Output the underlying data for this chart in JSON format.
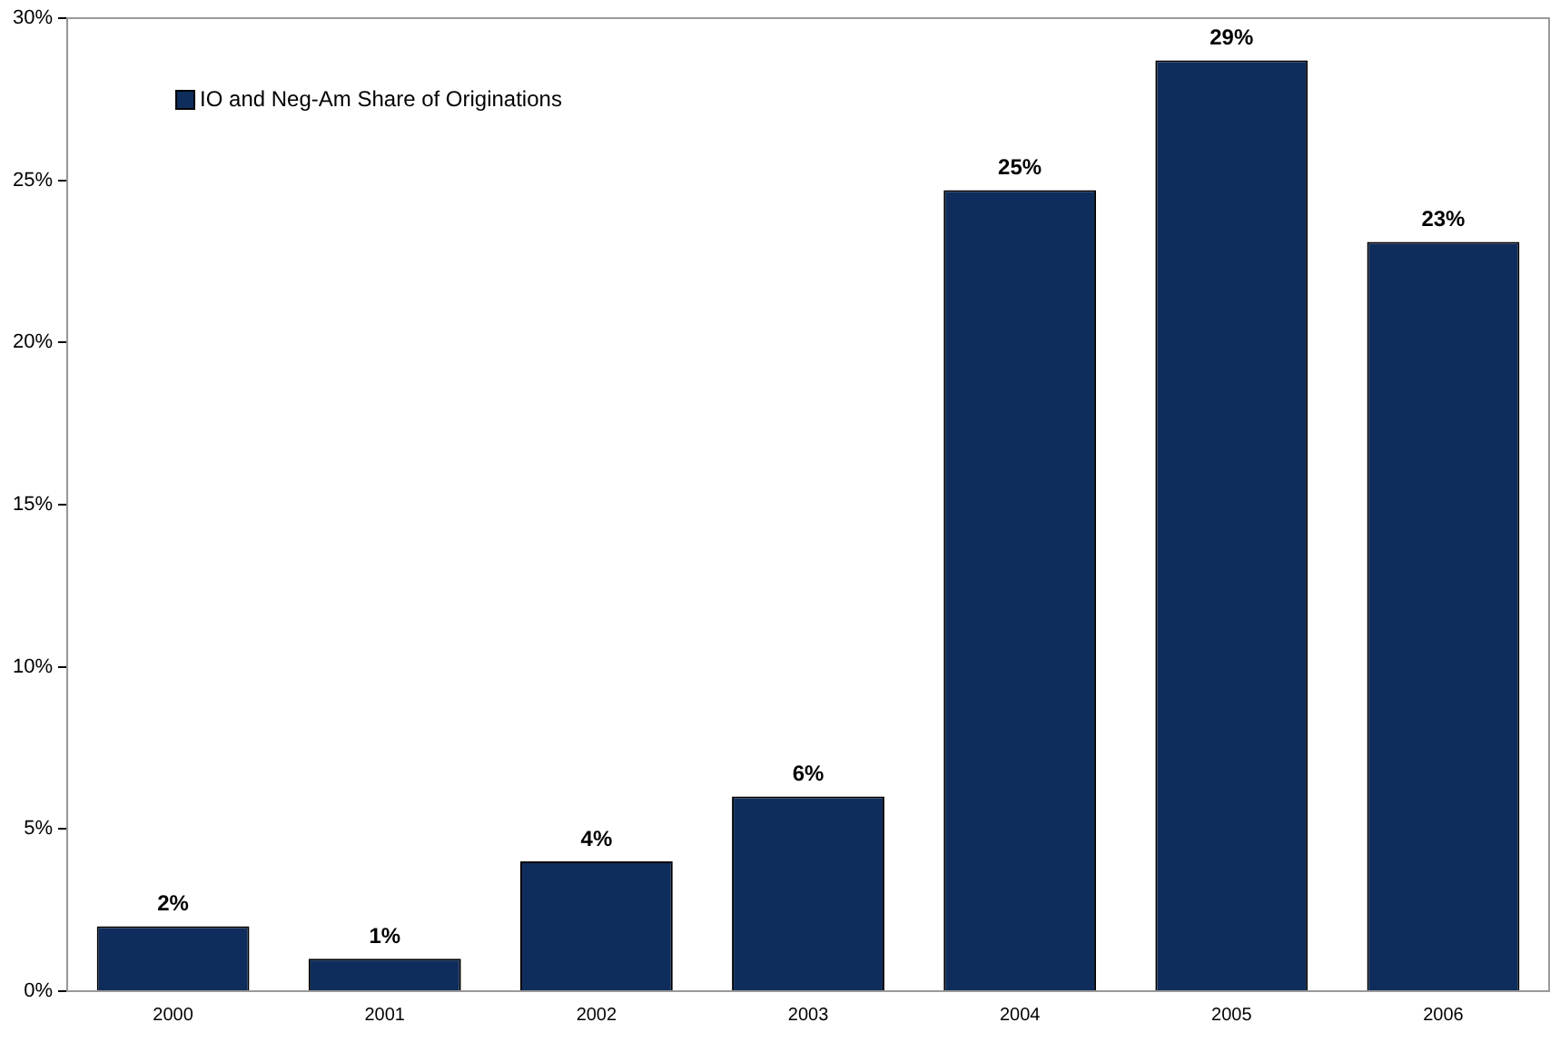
{
  "chart_data": {
    "type": "bar",
    "categories": [
      "2000",
      "2001",
      "2002",
      "2003",
      "2004",
      "2005",
      "2006"
    ],
    "series": [
      {
        "name": "IO and Neg-Am Share of Originations",
        "color": "#0f2d5c",
        "values": [
          2,
          1,
          4,
          6,
          24.7,
          28.7,
          23.1
        ],
        "value_labels": [
          "2%",
          "1%",
          "4%",
          "6%",
          "25%",
          "29%",
          "23%"
        ]
      }
    ],
    "ylim": [
      0,
      30
    ],
    "yticks": [
      {
        "value": 0,
        "label": "0%"
      },
      {
        "value": 5,
        "label": "5%"
      },
      {
        "value": 10,
        "label": "10%"
      },
      {
        "value": 15,
        "label": "15%"
      },
      {
        "value": 20,
        "label": "20%"
      },
      {
        "value": 25,
        "label": "25%"
      },
      {
        "value": 30,
        "label": "30%"
      }
    ],
    "grid": false,
    "legend": "top left"
  }
}
